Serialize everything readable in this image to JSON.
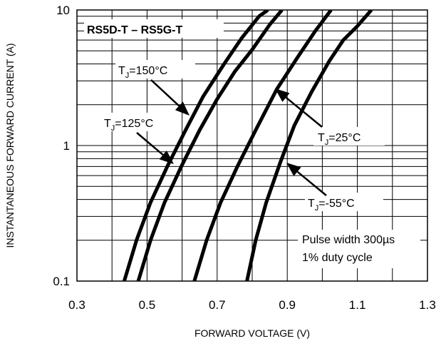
{
  "chart_data": {
    "type": "line",
    "title": "RS5D-T – RS5G-T",
    "xlabel": "FORWARD VOLTAGE (V)",
    "ylabel": "INSTANTANEOUS FORWARD CURRENT (A)",
    "xlim": [
      0.3,
      1.3
    ],
    "ylim": [
      0.1,
      10
    ],
    "yscale": "log",
    "grid": true,
    "x_ticks": [
      "0.3",
      "0.5",
      "0.7",
      "0.9",
      "1.1",
      "1.3"
    ],
    "y_ticks": [
      "0.1",
      "1",
      "10"
    ],
    "note_lines": [
      "Pulse width 300µs",
      "1% duty cycle"
    ],
    "series": [
      {
        "label_main": "T",
        "label_sub": "J",
        "label_rest": "=150°C",
        "x": [
          0.435,
          0.47,
          0.51,
          0.56,
          0.61,
          0.66,
          0.72,
          0.77,
          0.82,
          0.845
        ],
        "y": [
          0.1,
          0.2,
          0.38,
          0.72,
          1.3,
          2.3,
          4.0,
          6.2,
          9.0,
          10
        ]
      },
      {
        "label_main": "T",
        "label_sub": "J",
        "label_rest": "=125°C",
        "x": [
          0.475,
          0.51,
          0.55,
          0.6,
          0.65,
          0.7,
          0.75,
          0.8,
          0.85,
          0.885
        ],
        "y": [
          0.1,
          0.2,
          0.38,
          0.72,
          1.3,
          2.2,
          3.5,
          5.1,
          7.8,
          10
        ]
      },
      {
        "label_main": "T",
        "label_sub": "J",
        "label_rest": "=25°C",
        "x": [
          0.635,
          0.67,
          0.71,
          0.76,
          0.81,
          0.87,
          0.93,
          0.98,
          1.025
        ],
        "y": [
          0.1,
          0.2,
          0.38,
          0.72,
          1.3,
          2.6,
          4.5,
          7.0,
          10
        ]
      },
      {
        "label_main": "T",
        "label_sub": "J",
        "label_rest": "=-55°C",
        "x": [
          0.785,
          0.81,
          0.84,
          0.88,
          0.92,
          0.97,
          1.02,
          1.06,
          1.1,
          1.14
        ],
        "y": [
          0.1,
          0.2,
          0.38,
          0.75,
          1.4,
          2.5,
          4.2,
          6.0,
          7.6,
          10
        ]
      }
    ]
  }
}
